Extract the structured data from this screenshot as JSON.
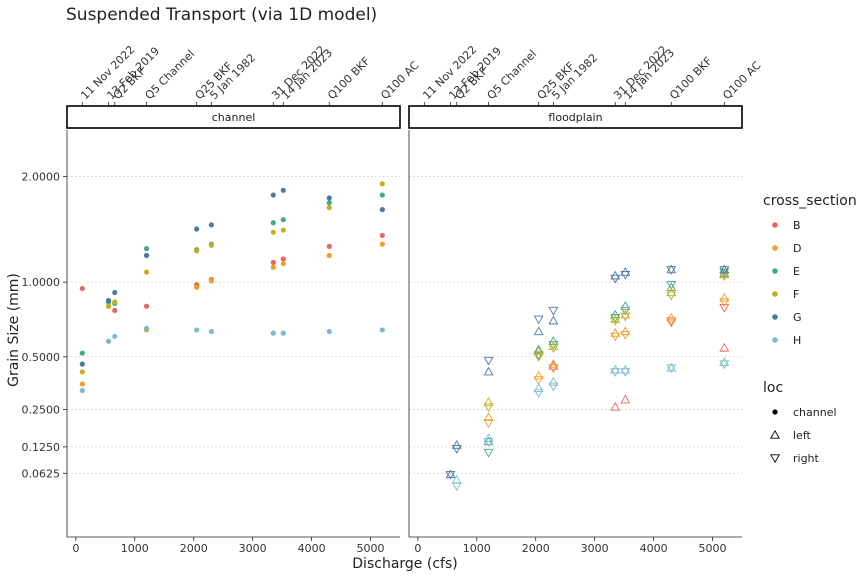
{
  "chart_data": {
    "type": "scatter",
    "title": "Suspended Transport (via 1D model)",
    "xlabel": "Discharge (cfs)",
    "ylabel": "Grain Size (mm)",
    "ylim": [
      0,
      2.55
    ],
    "xlim": [
      -150,
      5500
    ],
    "y_ticks": [
      0.0625,
      0.125,
      0.25,
      0.5,
      1.0,
      2.0
    ],
    "y_tick_labels": [
      "0.0625",
      "0.1250",
      "0.2500",
      "0.5000",
      "1.0000",
      "2.0000"
    ],
    "x_ticks": [
      0,
      1000,
      2000,
      3000,
      4000,
      5000
    ],
    "x_tick_labels": [
      "0",
      "1000",
      "2000",
      "3000",
      "4000",
      "5000"
    ],
    "y_scale": "sqrt",
    "grid": "horizontal dotted",
    "panels": [
      "channel",
      "floodplain"
    ],
    "top_axis": {
      "positions": [
        110,
        555,
        660,
        1200,
        2050,
        2300,
        3350,
        3520,
        4300,
        5200
      ],
      "labels": [
        "11 Nov 2022",
        "13 Feb 2019",
        "Q2 BKF",
        "Q5 Channel",
        "Q25 BKF",
        "5 Jan 1982",
        "31 Dec 2022",
        "14 Jan 2023",
        "Q100 BKF",
        "Q100 AC"
      ]
    },
    "legend_cross_section": {
      "title": "cross_section",
      "entries": [
        {
          "name": "B",
          "color": "#e8665f"
        },
        {
          "name": "D",
          "color": "#f59d27"
        },
        {
          "name": "E",
          "color": "#44a88a"
        },
        {
          "name": "F",
          "color": "#c8ad1f"
        },
        {
          "name": "G",
          "color": "#4d79a5"
        },
        {
          "name": "H",
          "color": "#79bbca"
        }
      ]
    },
    "legend_loc": {
      "title": "loc",
      "entries": [
        {
          "name": "channel",
          "shape": "circle"
        },
        {
          "name": "left",
          "shape": "triangle-up"
        },
        {
          "name": "right",
          "shape": "triangle-down"
        }
      ]
    },
    "series": [
      {
        "panel": "channel",
        "cs": "B",
        "loc": "channel",
        "x": [
          110,
          555,
          660,
          1200,
          2050,
          2300,
          3350,
          3520,
          4300,
          5200
        ],
        "y": [
          0.95,
          0.82,
          0.79,
          0.82,
          0.98,
          1.02,
          1.16,
          1.19,
          1.3,
          1.4
        ]
      },
      {
        "panel": "channel",
        "cs": "D",
        "loc": "channel",
        "x": [
          110,
          555,
          660,
          1200,
          2050,
          2300,
          3350,
          3520,
          4300,
          5200
        ],
        "y": [
          0.36,
          0.82,
          0.84,
          0.66,
          0.96,
          1.01,
          1.12,
          1.15,
          1.22,
          1.32
        ]
      },
      {
        "panel": "channel",
        "cs": "E",
        "loc": "channel",
        "x": [
          110,
          555,
          660,
          1200,
          2050,
          2300,
          3350,
          3520,
          4300,
          5200
        ],
        "y": [
          0.52,
          0.85,
          0.84,
          1.28,
          1.27,
          1.32,
          1.52,
          1.55,
          1.72,
          1.8
        ]
      },
      {
        "panel": "channel",
        "cs": "F",
        "loc": "channel",
        "x": [
          110,
          555,
          660,
          1200,
          2050,
          2300,
          3350,
          3520,
          4300,
          5200
        ],
        "y": [
          0.42,
          0.82,
          0.85,
          1.08,
          1.26,
          1.31,
          1.43,
          1.45,
          1.67,
          1.92
        ]
      },
      {
        "panel": "channel",
        "cs": "G",
        "loc": "channel",
        "x": [
          110,
          555,
          660,
          1200,
          2050,
          2300,
          3350,
          3520,
          4300,
          5200
        ],
        "y": [
          0.46,
          0.86,
          0.92,
          1.22,
          1.46,
          1.5,
          1.8,
          1.85,
          1.77,
          1.65
        ]
      },
      {
        "panel": "channel",
        "cs": "H",
        "loc": "channel",
        "x": [
          110,
          555,
          660,
          1200,
          2050,
          2300,
          3350,
          3520,
          4300,
          5200
        ],
        "y": [
          0.33,
          0.59,
          0.62,
          0.67,
          0.66,
          0.65,
          0.64,
          0.64,
          0.65,
          0.66
        ]
      },
      {
        "panel": "floodplain",
        "cs": "B",
        "loc": "left",
        "x": [
          2300,
          3350,
          3520,
          5200
        ],
        "y": [
          0.45,
          0.26,
          0.29,
          0.55
        ]
      },
      {
        "panel": "floodplain",
        "cs": "B",
        "loc": "right",
        "x": [
          2300,
          4300,
          5200
        ],
        "y": [
          0.44,
          0.71,
          0.81
        ]
      },
      {
        "panel": "floodplain",
        "cs": "D",
        "loc": "left",
        "x": [
          1200,
          2050,
          2300,
          3350,
          3520,
          4300,
          5200
        ],
        "y": [
          0.22,
          0.4,
          0.46,
          0.64,
          0.65,
          0.74,
          0.88
        ]
      },
      {
        "panel": "floodplain",
        "cs": "D",
        "loc": "right",
        "x": [
          1200,
          2050,
          2300,
          3350,
          3520,
          4300,
          5200
        ],
        "y": [
          0.2,
          0.38,
          0.44,
          0.62,
          0.63,
          0.72,
          0.85
        ]
      },
      {
        "panel": "floodplain",
        "cs": "E",
        "loc": "left",
        "x": [
          1200,
          2050,
          2300,
          3350,
          3520,
          4300,
          5200
        ],
        "y": [
          0.14,
          0.54,
          0.59,
          0.76,
          0.82,
          0.96,
          1.07
        ]
      },
      {
        "panel": "floodplain",
        "cs": "E",
        "loc": "right",
        "x": [
          1200,
          2050,
          2300,
          3350,
          3520,
          4300,
          5200
        ],
        "y": [
          0.11,
          0.51,
          0.57,
          0.74,
          0.79,
          0.98,
          1.08
        ]
      },
      {
        "panel": "floodplain",
        "cs": "F",
        "loc": "left",
        "x": [
          1200,
          2050,
          2300,
          3350,
          3520,
          4300,
          5200
        ],
        "y": [
          0.28,
          0.53,
          0.56,
          0.73,
          0.76,
          0.92,
          1.06
        ]
      },
      {
        "panel": "floodplain",
        "cs": "F",
        "loc": "right",
        "x": [
          1200,
          2050,
          2300,
          3350,
          3520,
          4300,
          5200
        ],
        "y": [
          0.26,
          0.5,
          0.55,
          0.72,
          0.75,
          0.9,
          1.05
        ]
      },
      {
        "panel": "floodplain",
        "cs": "G",
        "loc": "left",
        "x": [
          555,
          660,
          1200,
          2050,
          2300,
          3350,
          3520,
          4300,
          5200
        ],
        "y": [
          0.06,
          0.13,
          0.42,
          0.65,
          0.72,
          1.05,
          1.08,
          1.1,
          1.1
        ]
      },
      {
        "panel": "floodplain",
        "cs": "G",
        "loc": "right",
        "x": [
          555,
          660,
          1200,
          2050,
          2300,
          3350,
          3520,
          4300,
          5200
        ],
        "y": [
          0.06,
          0.12,
          0.48,
          0.73,
          0.79,
          1.03,
          1.06,
          1.1,
          1.1
        ]
      },
      {
        "panel": "floodplain",
        "cs": "H",
        "loc": "left",
        "x": [
          660,
          1200,
          2050,
          2300,
          3350,
          3520,
          4300,
          5200
        ],
        "y": [
          0.05,
          0.15,
          0.34,
          0.37,
          0.43,
          0.43,
          0.44,
          0.47
        ]
      },
      {
        "panel": "floodplain",
        "cs": "H",
        "loc": "right",
        "x": [
          660,
          1200,
          2050,
          2300,
          3350,
          3520,
          4300,
          5200
        ],
        "y": [
          0.04,
          0.14,
          0.32,
          0.35,
          0.42,
          0.42,
          0.44,
          0.46
        ]
      }
    ]
  }
}
